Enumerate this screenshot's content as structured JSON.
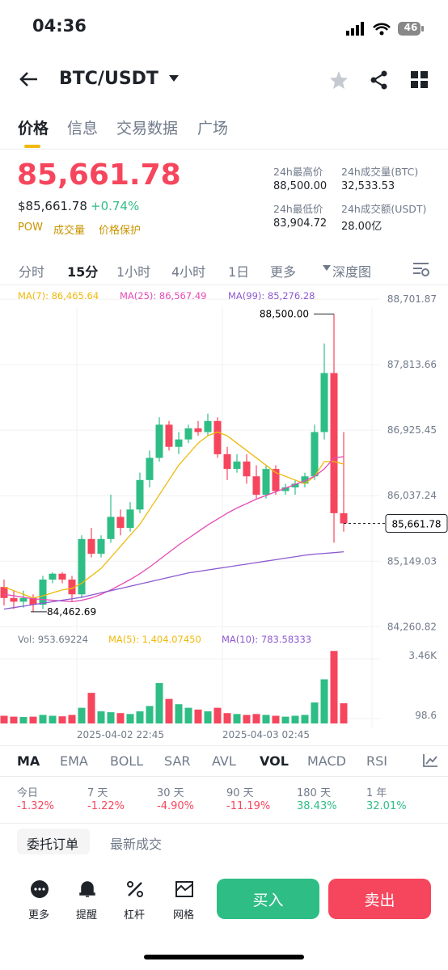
{
  "status": {
    "time": "04:36",
    "battery": "46"
  },
  "header": {
    "pair": "BTC/USDT"
  },
  "tabs": [
    "价格",
    "信息",
    "交易数据",
    "广场"
  ],
  "price": {
    "last": "85,661.78",
    "usd": "$85,661.78",
    "change": "+0.74%",
    "tags": [
      "POW",
      "成交量",
      "价格保护"
    ]
  },
  "stats": [
    {
      "label": "24h最高价",
      "value": "88,500.00"
    },
    {
      "label": "24h成交量(BTC)",
      "value": "32,533.53"
    },
    {
      "label": "24h最低价",
      "value": "83,904.72"
    },
    {
      "label": "24h成交额(USDT)",
      "value": "28.00亿"
    }
  ],
  "intervals": [
    "分时",
    "15分",
    "1小时",
    "4小时",
    "1日",
    "更多",
    "深度图"
  ],
  "chart_data": [
    {
      "type": "candlestick",
      "legend": [
        "MA(7): 86,465.64",
        "MA(25): 86,567.49",
        "MA(99): 85,276.28"
      ],
      "open": [
        84800,
        84650,
        84600,
        84650,
        84560,
        84900,
        84980,
        84900,
        84700,
        85450,
        85250,
        85450,
        85750,
        85600,
        85850,
        86250,
        86550,
        87000,
        86700,
        86800,
        86950,
        86900,
        87050,
        86600,
        86400,
        86500,
        86300,
        86050,
        86400,
        86100,
        86150,
        86200,
        86300,
        86900,
        87700,
        85800
      ],
      "close": [
        84650,
        84600,
        84650,
        84560,
        84900,
        84980,
        84900,
        84700,
        85450,
        85250,
        85450,
        85750,
        85600,
        85850,
        86250,
        86550,
        87000,
        86700,
        86800,
        86950,
        86900,
        87050,
        86600,
        86400,
        86500,
        86300,
        86050,
        86400,
        86100,
        86150,
        86200,
        86300,
        86900,
        87700,
        85800,
        85661.78
      ],
      "high": [
        84900,
        84750,
        84750,
        84700,
        84950,
        85000,
        85000,
        84950,
        85500,
        85600,
        85500,
        86050,
        85850,
        85950,
        86350,
        86650,
        87100,
        87050,
        86900,
        87000,
        87050,
        87150,
        87100,
        86700,
        86600,
        86600,
        86450,
        86450,
        86450,
        86200,
        86250,
        86350,
        87000,
        88100,
        88500,
        86900
      ],
      "low": [
        84550,
        84500,
        84520,
        84462.69,
        84500,
        84850,
        84850,
        84600,
        84650,
        85200,
        85200,
        85400,
        85500,
        85550,
        85800,
        86150,
        86500,
        86650,
        86600,
        86750,
        86850,
        86850,
        86550,
        86250,
        86350,
        86200,
        86000,
        86000,
        86050,
        86050,
        86050,
        86150,
        86250,
        86800,
        85400,
        85550
      ],
      "series": [
        {
          "name": "MA(7)",
          "color": "#f0b90b",
          "values": [
            84800,
            84750,
            84700,
            84650,
            84680,
            84720,
            84760,
            84780,
            84850,
            84950,
            85050,
            85200,
            85350,
            85500,
            85650,
            85850,
            86050,
            86250,
            86450,
            86600,
            86750,
            86850,
            86900,
            86850,
            86750,
            86650,
            86550,
            86450,
            86350,
            86300,
            86250,
            86200,
            86300,
            86500,
            86500,
            86465.64
          ]
        },
        {
          "name": "MA(25)",
          "color": "#e64bb5",
          "values": [
            84700,
            84680,
            84660,
            84640,
            84630,
            84620,
            84610,
            84600,
            84620,
            84650,
            84700,
            84760,
            84830,
            84900,
            84980,
            85070,
            85170,
            85270,
            85370,
            85460,
            85550,
            85640,
            85720,
            85800,
            85870,
            85930,
            85990,
            86040,
            86090,
            86140,
            86190,
            86240,
            86300,
            86400,
            86550,
            86567.49
          ]
        },
        {
          "name": "MA(99)",
          "color": "#8c5ad0",
          "values": [
            84500,
            84520,
            84540,
            84560,
            84580,
            84600,
            84620,
            84640,
            84660,
            84690,
            84720,
            84750,
            84780,
            84810,
            84840,
            84870,
            84900,
            84930,
            84960,
            84990,
            85010,
            85030,
            85050,
            85070,
            85090,
            85110,
            85130,
            85150,
            85170,
            85190,
            85210,
            85230,
            85245,
            85255,
            85265,
            85276.28
          ]
        }
      ],
      "up_color": "#2ebd85",
      "down_color": "#f6465d",
      "ylim": [
        84100,
        88900
      ],
      "yticks": [
        {
          "value": 88701.87,
          "label": "88,701.87"
        },
        {
          "value": 87813.66,
          "label": "87,813.66"
        },
        {
          "value": 86925.45,
          "label": "86,925.45"
        },
        {
          "value": 86037.24,
          "label": "86,037.24"
        },
        {
          "value": 85149.03,
          "label": "85,149.03"
        },
        {
          "value": 84260.82,
          "label": "84,260.82"
        }
      ],
      "grid": true,
      "annotations": [
        {
          "text": "88,500.00",
          "value": 88500
        },
        {
          "text": "84,462.69",
          "value": 84462.69
        },
        {
          "text": "85,661.78",
          "value": 85661.78
        }
      ]
    },
    {
      "type": "bar",
      "legend": [
        "Vol: 953.69224",
        "MA(5): 1,404.07450",
        "MA(10): 783.58333"
      ],
      "categories": [
        null,
        null,
        null,
        null,
        null,
        null,
        null,
        null,
        null,
        null,
        null,
        null,
        "2025-04-02 22:45",
        null,
        null,
        null,
        null,
        null,
        null,
        null,
        null,
        null,
        null,
        null,
        null,
        null,
        null,
        "2025-04-03 02:45",
        null,
        null,
        null,
        null,
        null,
        null,
        null,
        null
      ],
      "values": [
        250,
        200,
        180,
        200,
        300,
        250,
        220,
        300,
        700,
        1540,
        500,
        450,
        400,
        350,
        500,
        800,
        2090,
        1200,
        900,
        700,
        600,
        500,
        700,
        400,
        350,
        300,
        350,
        300,
        250,
        200,
        250,
        300,
        1000,
        2300,
        3900,
        953.69224
      ],
      "ylim": [
        0,
        4140
      ],
      "yticks": [
        {
          "value": 3460,
          "label": "3.46K"
        },
        98.6
      ],
      "grid": true
    }
  ],
  "indicators": [
    "MA",
    "EMA",
    "BOLL",
    "SAR",
    "AVL",
    "VOL",
    "MACD",
    "RSI"
  ],
  "performance": [
    {
      "label": "今日",
      "value": "-1.32%"
    },
    {
      "label": "7 天",
      "value": "-1.22%"
    },
    {
      "label": "30 天",
      "value": "-4.90%"
    },
    {
      "label": "90 天",
      "value": "-11.19%"
    },
    {
      "label": "180 天",
      "value": "38.43%"
    },
    {
      "label": "1 年",
      "value": "32.01%"
    }
  ],
  "order_tabs": [
    "委托订单",
    "最新成交"
  ],
  "toolbar": [
    "更多",
    "提醒",
    "杠杆",
    "网格"
  ],
  "buy": "买入",
  "sell": "卖出"
}
